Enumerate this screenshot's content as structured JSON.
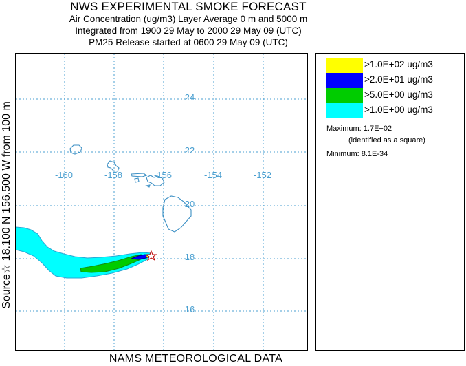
{
  "header": {
    "title": "NWS EXPERIMENTAL SMOKE FORECAST",
    "line1": "Air Concentration (ug/m3) Layer Average    0 m and  5000 m",
    "line2": "Integrated from 1900 29 May to 2000 29 May 09 (UTC)",
    "line3": "PM25 Release started at 0600 29 May 09 (UTC)"
  },
  "side_label": "Source☆ 18.100  N 156.500  W      from  100 m",
  "footer": "NAMS METEOROLOGICAL DATA",
  "map": {
    "longitude_labels": [
      "-160",
      "-158",
      "-156",
      "-154",
      "-152"
    ],
    "latitude_labels": [
      "24",
      "22",
      "20",
      "18",
      "16"
    ],
    "grid_color": "#4a9fd0",
    "coast_color": "#3b8fc4",
    "source_marker": "star-icon",
    "source_point": {
      "lat": 18.1,
      "lon": -156.5
    }
  },
  "legend": {
    "items": [
      {
        "label": ">1.0E+02 ug/m3",
        "color": "#ffff00"
      },
      {
        "label": ">2.0E+01 ug/m3",
        "color": "#0000ff"
      },
      {
        "label": ">5.0E+00 ug/m3",
        "color": "#00cc00"
      },
      {
        "label": ">1.0E+00 ug/m3",
        "color": "#00ffff"
      }
    ],
    "maximum": "Maximum: 1.7E+02",
    "maximum_note": "(identified as a square)",
    "minimum": "Minimum: 8.1E-34"
  }
}
